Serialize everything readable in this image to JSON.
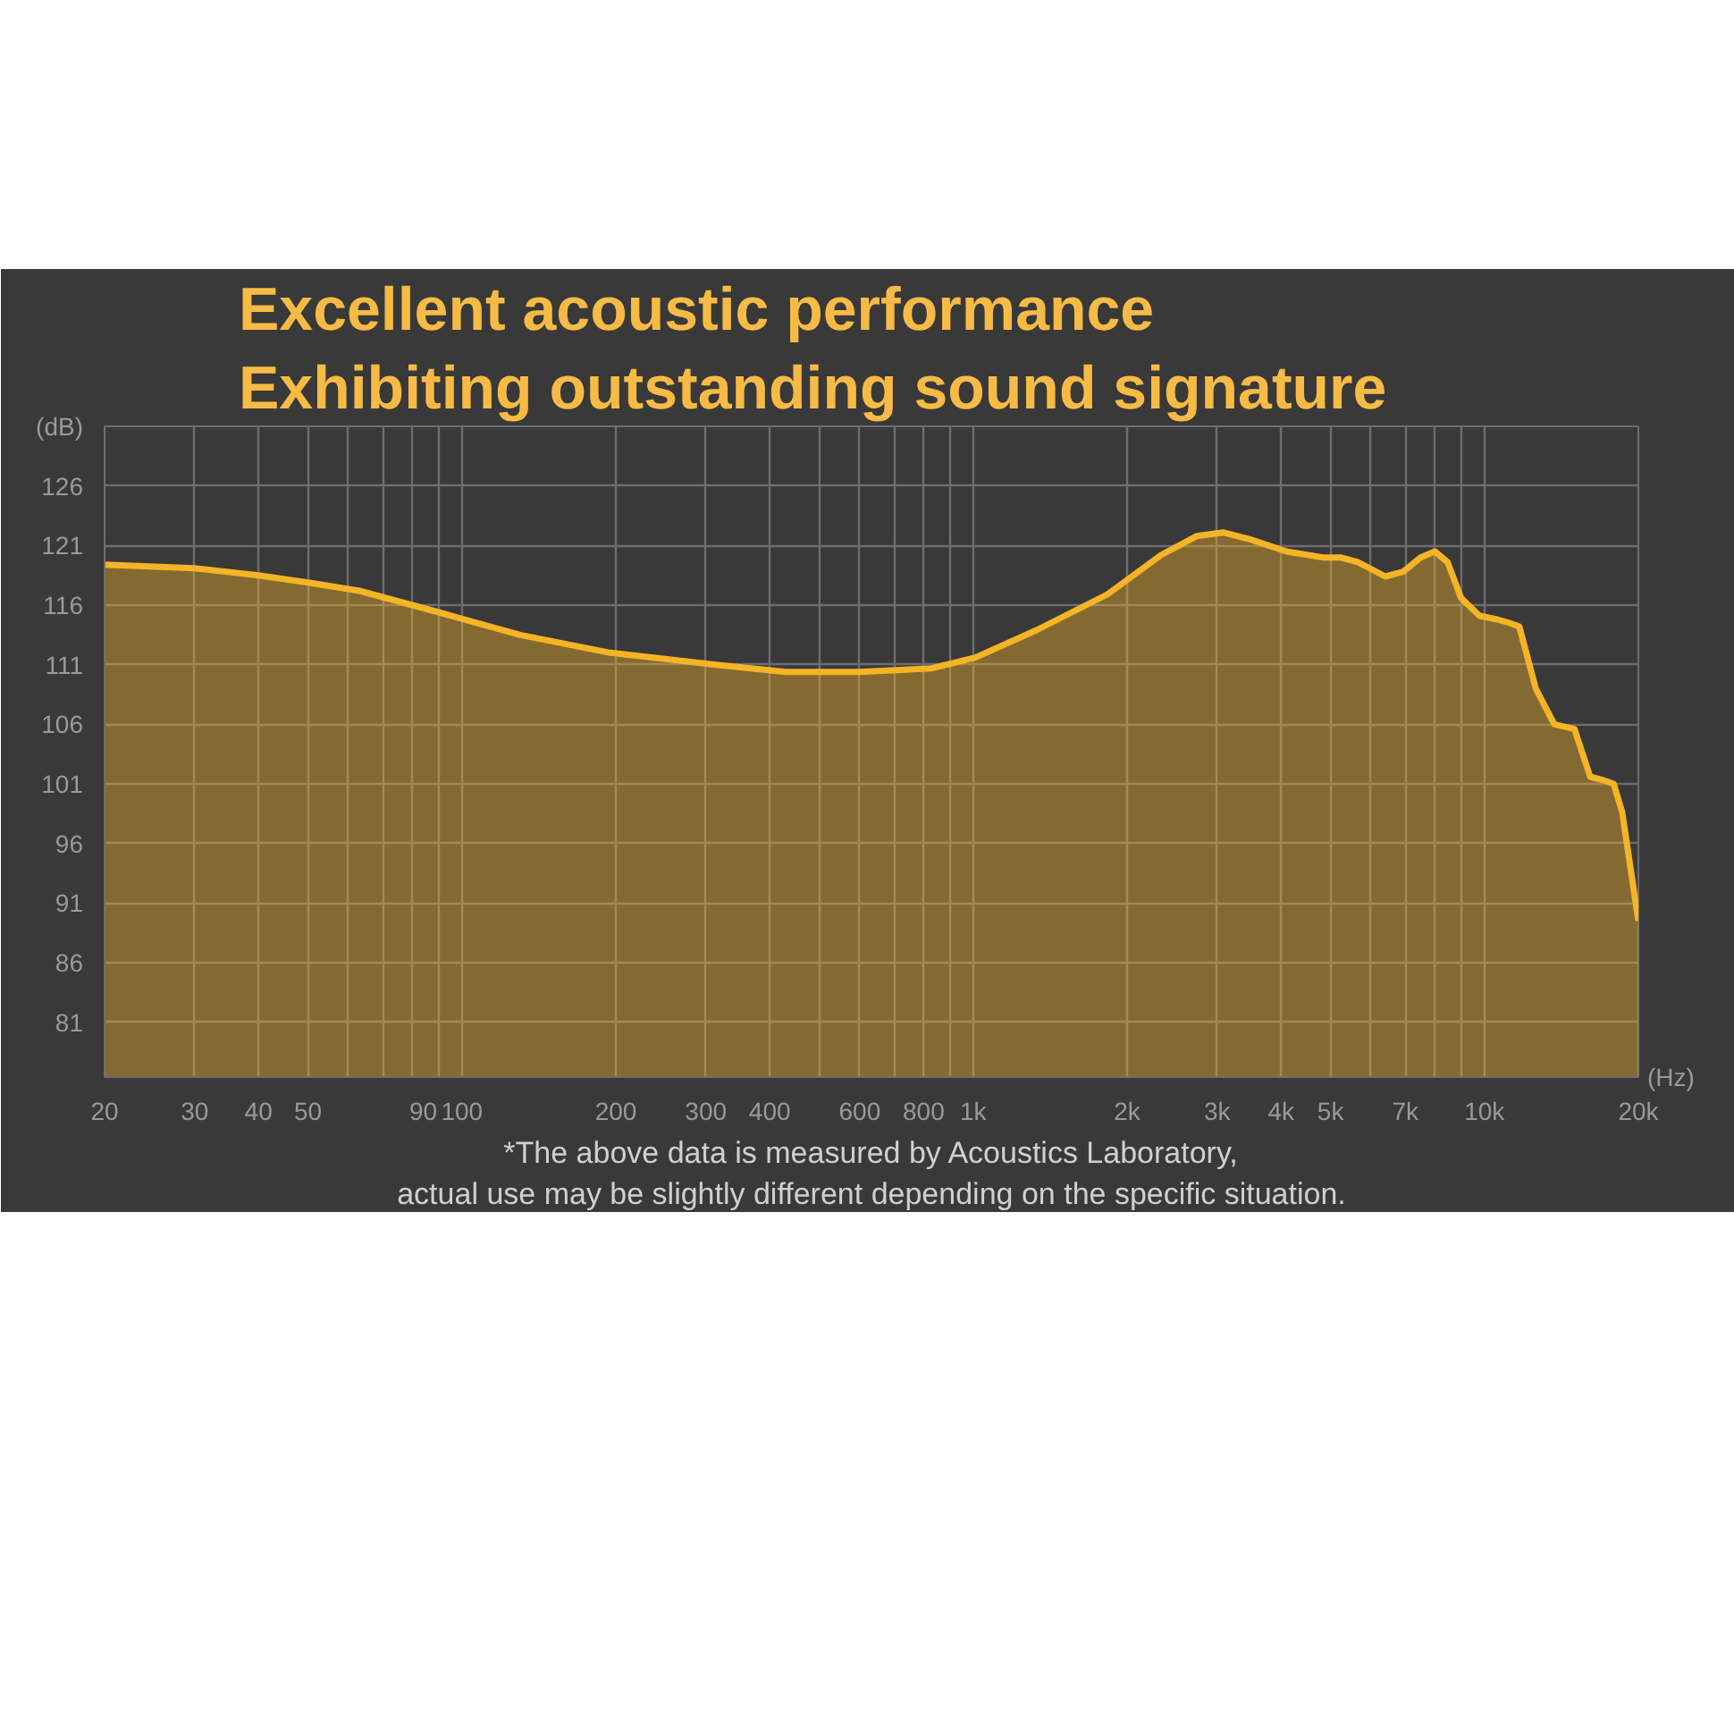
{
  "chart_data": {
    "type": "area",
    "title": "Excellent acoustic performance",
    "subtitle": "Exhibiting outstanding sound signature",
    "xlabel": "(Hz)",
    "ylabel": "(dB)",
    "annotations": [
      "*The above data is measured by Acoustics Laboratory,",
      "actual use may be slightly different depending on the specific situation."
    ],
    "log": "x",
    "grid": true,
    "xlim": [
      20,
      20000
    ],
    "ylim": [
      76.4,
      131
    ],
    "xticks": [
      20,
      30,
      40,
      50,
      {
        "value": 60,
        "label": null
      },
      {
        "value": 70,
        "label": null
      },
      {
        "value": 80,
        "label": null
      },
      90,
      100,
      200,
      300,
      400,
      {
        "value": 500,
        "label": null
      },
      600,
      {
        "value": 700,
        "label": null
      },
      800,
      {
        "value": 900,
        "label": null
      },
      {
        "value": 1000,
        "label": "1k"
      },
      {
        "value": 2000,
        "label": "2k"
      },
      {
        "value": 3000,
        "label": "3k"
      },
      {
        "value": 4000,
        "label": "4k"
      },
      {
        "value": 5000,
        "label": "5k"
      },
      {
        "value": 6000,
        "label": null
      },
      {
        "value": 7000,
        "label": "7k"
      },
      {
        "value": 8000,
        "label": null
      },
      {
        "value": 9000,
        "label": null
      },
      {
        "value": 10000,
        "label": "10k"
      },
      {
        "value": 20000,
        "label": "20k"
      }
    ],
    "yticks": [
      81,
      86,
      91,
      96,
      101,
      106,
      111,
      116,
      121,
      126
    ],
    "series": [
      {
        "color": "#f5b425",
        "x": [
          20,
          30,
          40,
          50,
          63,
          90,
          130,
          195,
          314,
          430,
          600,
          830,
          1010,
          1330,
          1830,
          2330,
          2740,
          3080,
          3490,
          4100,
          4830,
          5230,
          5660,
          6400,
          6930,
          7500,
          8000,
          8470,
          9000,
          9780,
          10600,
          11200,
          11700,
          12600,
          13700,
          15000,
          16100,
          17100,
          17900,
          18600,
          20000
        ],
        "values": [
          119.4,
          119.1,
          118.5,
          117.9,
          117.2,
          115.4,
          113.5,
          112,
          111,
          110.4,
          110.4,
          110.7,
          111.6,
          113.9,
          116.9,
          120.2,
          121.8,
          122.1,
          121.5,
          120.5,
          120,
          120,
          119.6,
          118.4,
          118.8,
          120,
          120.5,
          119.6,
          116.6,
          115.1,
          114.8,
          114.5,
          114.2,
          109,
          106,
          105.6,
          101.6,
          101.3,
          101,
          98.6,
          89.5
        ]
      }
    ]
  }
}
